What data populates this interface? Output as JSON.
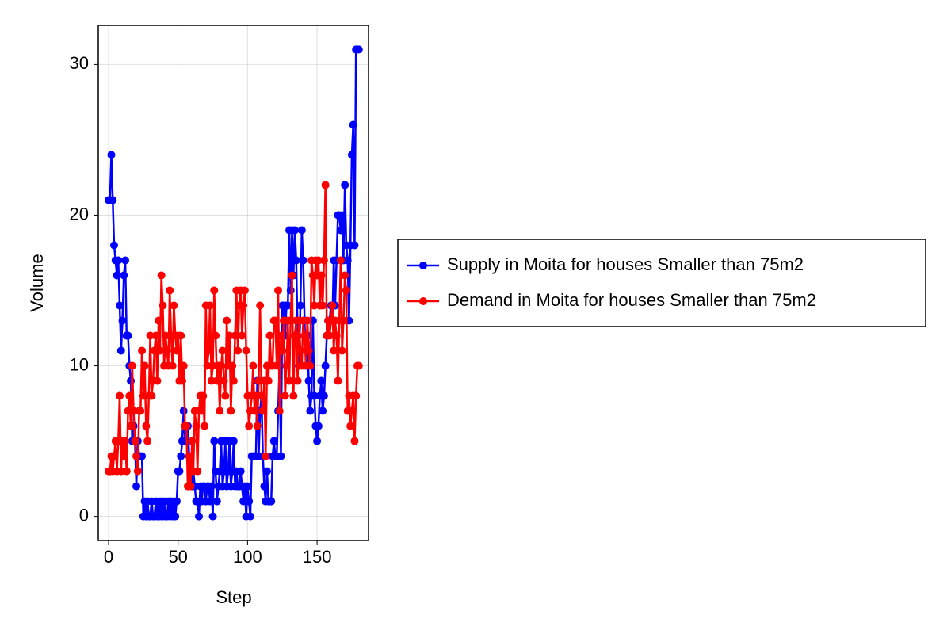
{
  "chart_data": {
    "type": "line",
    "xlabel": "Step",
    "ylabel": "Volume",
    "x": [
      0,
      1,
      2,
      3,
      4,
      5,
      6,
      7,
      8,
      9,
      10,
      11,
      12,
      13,
      14,
      15,
      16,
      17,
      18,
      19,
      20,
      21,
      22,
      23,
      24,
      25,
      26,
      27,
      28,
      29,
      30,
      31,
      32,
      33,
      34,
      35,
      36,
      37,
      38,
      39,
      40,
      41,
      42,
      43,
      44,
      45,
      46,
      47,
      48,
      49,
      50,
      51,
      52,
      53,
      54,
      55,
      56,
      57,
      58,
      59,
      60,
      61,
      62,
      63,
      64,
      65,
      66,
      67,
      68,
      69,
      70,
      71,
      72,
      73,
      74,
      75,
      76,
      77,
      78,
      79,
      80,
      81,
      82,
      83,
      84,
      85,
      86,
      87,
      88,
      89,
      90,
      91,
      92,
      93,
      94,
      95,
      96,
      97,
      98,
      99,
      100,
      101,
      102,
      103,
      104,
      105,
      106,
      107,
      108,
      109,
      110,
      111,
      112,
      113,
      114,
      115,
      116,
      117,
      118,
      119,
      120,
      121,
      122,
      123,
      124,
      125,
      126,
      127,
      128,
      129,
      130,
      131,
      132,
      133,
      134,
      135,
      136,
      137,
      138,
      139,
      140,
      141,
      142,
      143,
      144,
      145,
      146,
      147,
      148,
      149,
      150,
      151,
      152,
      153,
      154,
      155,
      156,
      157,
      158,
      159,
      160,
      161,
      162,
      163,
      164,
      165,
      166,
      167,
      168,
      169,
      170,
      171,
      172,
      173,
      174,
      175,
      176,
      177,
      178,
      179,
      180
    ],
    "series": [
      {
        "name": "Supply in Moita for houses Smaller than 75m2",
        "color": "#0000ff",
        "values": [
          21,
          21,
          24,
          21,
          18,
          17,
          16,
          17,
          14,
          11,
          13,
          16,
          17,
          12,
          12,
          10,
          9,
          5,
          6,
          5,
          2,
          5,
          4,
          4,
          4,
          0,
          1,
          0,
          1,
          0,
          0,
          1,
          0,
          0,
          1,
          0,
          1,
          0,
          1,
          0,
          1,
          0,
          0,
          1,
          0,
          1,
          0,
          1,
          0,
          1,
          3,
          3,
          4,
          5,
          7,
          5,
          6,
          6,
          4,
          3,
          2,
          3,
          2,
          1,
          1,
          0,
          2,
          1,
          2,
          2,
          1,
          2,
          2,
          1,
          2,
          0,
          5,
          3,
          1,
          2,
          3,
          5,
          2,
          3,
          5,
          2,
          3,
          5,
          2,
          3,
          5,
          2,
          3,
          2,
          2,
          3,
          2,
          1,
          2,
          0,
          2,
          1,
          0,
          4,
          4,
          4,
          4,
          9,
          4,
          7,
          8,
          4,
          2,
          1,
          3,
          1,
          1,
          1,
          4,
          5,
          4,
          4,
          7,
          10,
          4,
          14,
          14,
          12,
          14,
          14,
          19,
          15,
          19,
          16,
          19,
          17,
          12,
          10,
          14,
          19,
          17,
          13,
          10,
          12,
          9,
          7,
          8,
          13,
          8,
          6,
          5,
          6,
          8,
          9,
          7,
          8,
          10,
          12,
          13,
          13,
          14,
          13,
          17,
          14,
          17,
          20,
          20,
          19,
          20,
          17,
          22,
          18,
          17,
          13,
          18,
          24,
          26,
          18,
          31,
          31,
          31
        ]
      },
      {
        "name": "Demand in Moita for houses Smaller than 75m2",
        "color": "#ff0000",
        "values": [
          3,
          3,
          4,
          3,
          4,
          5,
          3,
          5,
          8,
          3,
          5,
          4,
          5,
          3,
          7,
          8,
          6,
          10,
          7,
          5,
          4,
          3,
          7,
          7,
          11,
          8,
          10,
          6,
          5,
          8,
          12,
          8,
          9,
          11,
          12,
          9,
          13,
          11,
          16,
          14,
          10,
          12,
          11,
          10,
          15,
          12,
          10,
          14,
          12,
          11,
          12,
          9,
          12,
          9,
          10,
          6,
          6,
          2,
          4,
          2,
          5,
          3,
          7,
          6,
          3,
          7,
          8,
          7,
          8,
          6,
          14,
          10,
          11,
          14,
          9,
          10,
          15,
          12,
          9,
          10,
          7,
          10,
          11,
          9,
          8,
          13,
          10,
          12,
          7,
          10,
          9,
          12,
          15,
          11,
          14,
          15,
          12,
          14,
          15,
          11,
          8,
          6,
          7,
          8,
          10,
          7,
          8,
          6,
          9,
          14,
          8,
          7,
          9,
          4,
          10,
          9,
          12,
          10,
          10,
          13,
          13,
          10,
          15,
          7,
          12,
          11,
          13,
          8,
          10,
          13,
          9,
          13,
          16,
          8,
          12,
          13,
          9,
          13,
          11,
          10,
          13,
          12,
          10,
          13,
          11,
          10,
          17,
          16,
          14,
          17,
          16,
          17,
          14,
          16,
          14,
          17,
          22,
          12,
          13,
          12,
          13,
          14,
          11,
          13,
          12,
          9,
          13,
          17,
          11,
          13,
          16,
          15,
          7,
          8,
          6,
          7,
          8,
          5,
          8,
          10,
          10
        ]
      }
    ],
    "xlim": [
      -7.4,
      187
    ],
    "ylim": [
      -1.6,
      32.6
    ],
    "xticks": [
      0,
      50,
      100,
      150
    ],
    "yticks": [
      0,
      10,
      20,
      30
    ],
    "grid": true,
    "legend": "right"
  }
}
